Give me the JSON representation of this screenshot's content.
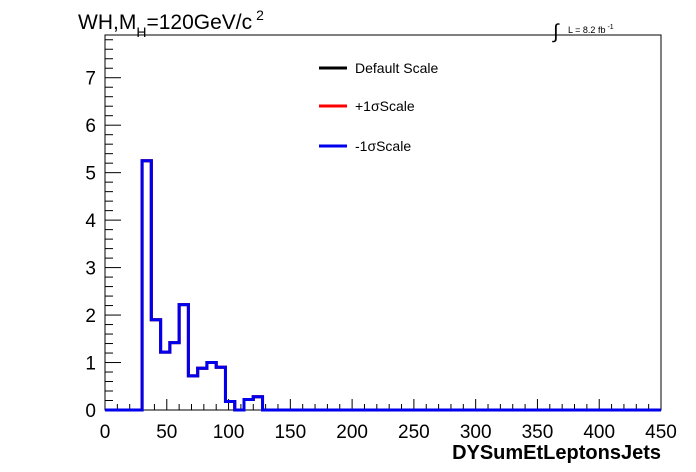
{
  "header": {
    "title_main": "WH,M",
    "title_sub": "H",
    "title_rest": "=120GeV/c",
    "title_sup": "2",
    "lumi_prefix": "L = 8.2 fb",
    "lumi_sup": "-1"
  },
  "chart_data": {
    "type": "line",
    "title": "WH,MH=120GeV/c2",
    "xlabel": "DYSumEtLeptonsJets",
    "ylabel": "",
    "xlim": [
      0,
      450
    ],
    "ylim": [
      0,
      7.9
    ],
    "xticks": [
      0,
      50,
      100,
      150,
      200,
      250,
      300,
      350,
      400,
      450
    ],
    "yticks": [
      0,
      1,
      2,
      3,
      4,
      5,
      6,
      7
    ],
    "grid": false,
    "legend_position": "top-center",
    "bin_width": 7.5,
    "bin_edges_start": 0,
    "series": [
      {
        "name": "Default Scale",
        "color": "#000000",
        "values": [
          0,
          0,
          0,
          0,
          5.25,
          1.9,
          1.22,
          1.42,
          2.22,
          0.72,
          0.88,
          1.0,
          0.9,
          0.18,
          0,
          0.22,
          0.28,
          0,
          0,
          0,
          0,
          0,
          0,
          0,
          0,
          0,
          0,
          0,
          0,
          0,
          0,
          0,
          0,
          0,
          0,
          0,
          0,
          0,
          0,
          0,
          0,
          0,
          0,
          0,
          0,
          0,
          0,
          0,
          0,
          0,
          0,
          0,
          0,
          0,
          0,
          0,
          0,
          0,
          0,
          0
        ]
      },
      {
        "name": "+1σScale",
        "color": "#ff0000",
        "values": [
          0,
          0,
          0,
          0,
          5.25,
          1.9,
          1.22,
          1.42,
          2.22,
          0.72,
          0.88,
          1.0,
          0.9,
          0.18,
          0,
          0.22,
          0.28,
          0,
          0,
          0,
          0,
          0,
          0,
          0,
          0,
          0,
          0,
          0,
          0,
          0,
          0,
          0,
          0,
          0,
          0,
          0,
          0,
          0,
          0,
          0,
          0,
          0,
          0,
          0,
          0,
          0,
          0,
          0,
          0,
          0,
          0,
          0,
          0,
          0,
          0,
          0,
          0,
          0,
          0,
          0
        ]
      },
      {
        "name": "-1σScale",
        "color": "#0000ee",
        "values": [
          0,
          0,
          0,
          0,
          5.25,
          1.9,
          1.22,
          1.42,
          2.22,
          0.72,
          0.88,
          1.0,
          0.9,
          0.18,
          0,
          0.22,
          0.28,
          0,
          0,
          0,
          0,
          0,
          0,
          0,
          0,
          0,
          0,
          0,
          0,
          0,
          0,
          0,
          0,
          0,
          0,
          0,
          0,
          0,
          0,
          0,
          0,
          0,
          0,
          0,
          0,
          0,
          0,
          0,
          0,
          0,
          0,
          0,
          0,
          0,
          0,
          0,
          0,
          0,
          0,
          0
        ]
      }
    ]
  }
}
